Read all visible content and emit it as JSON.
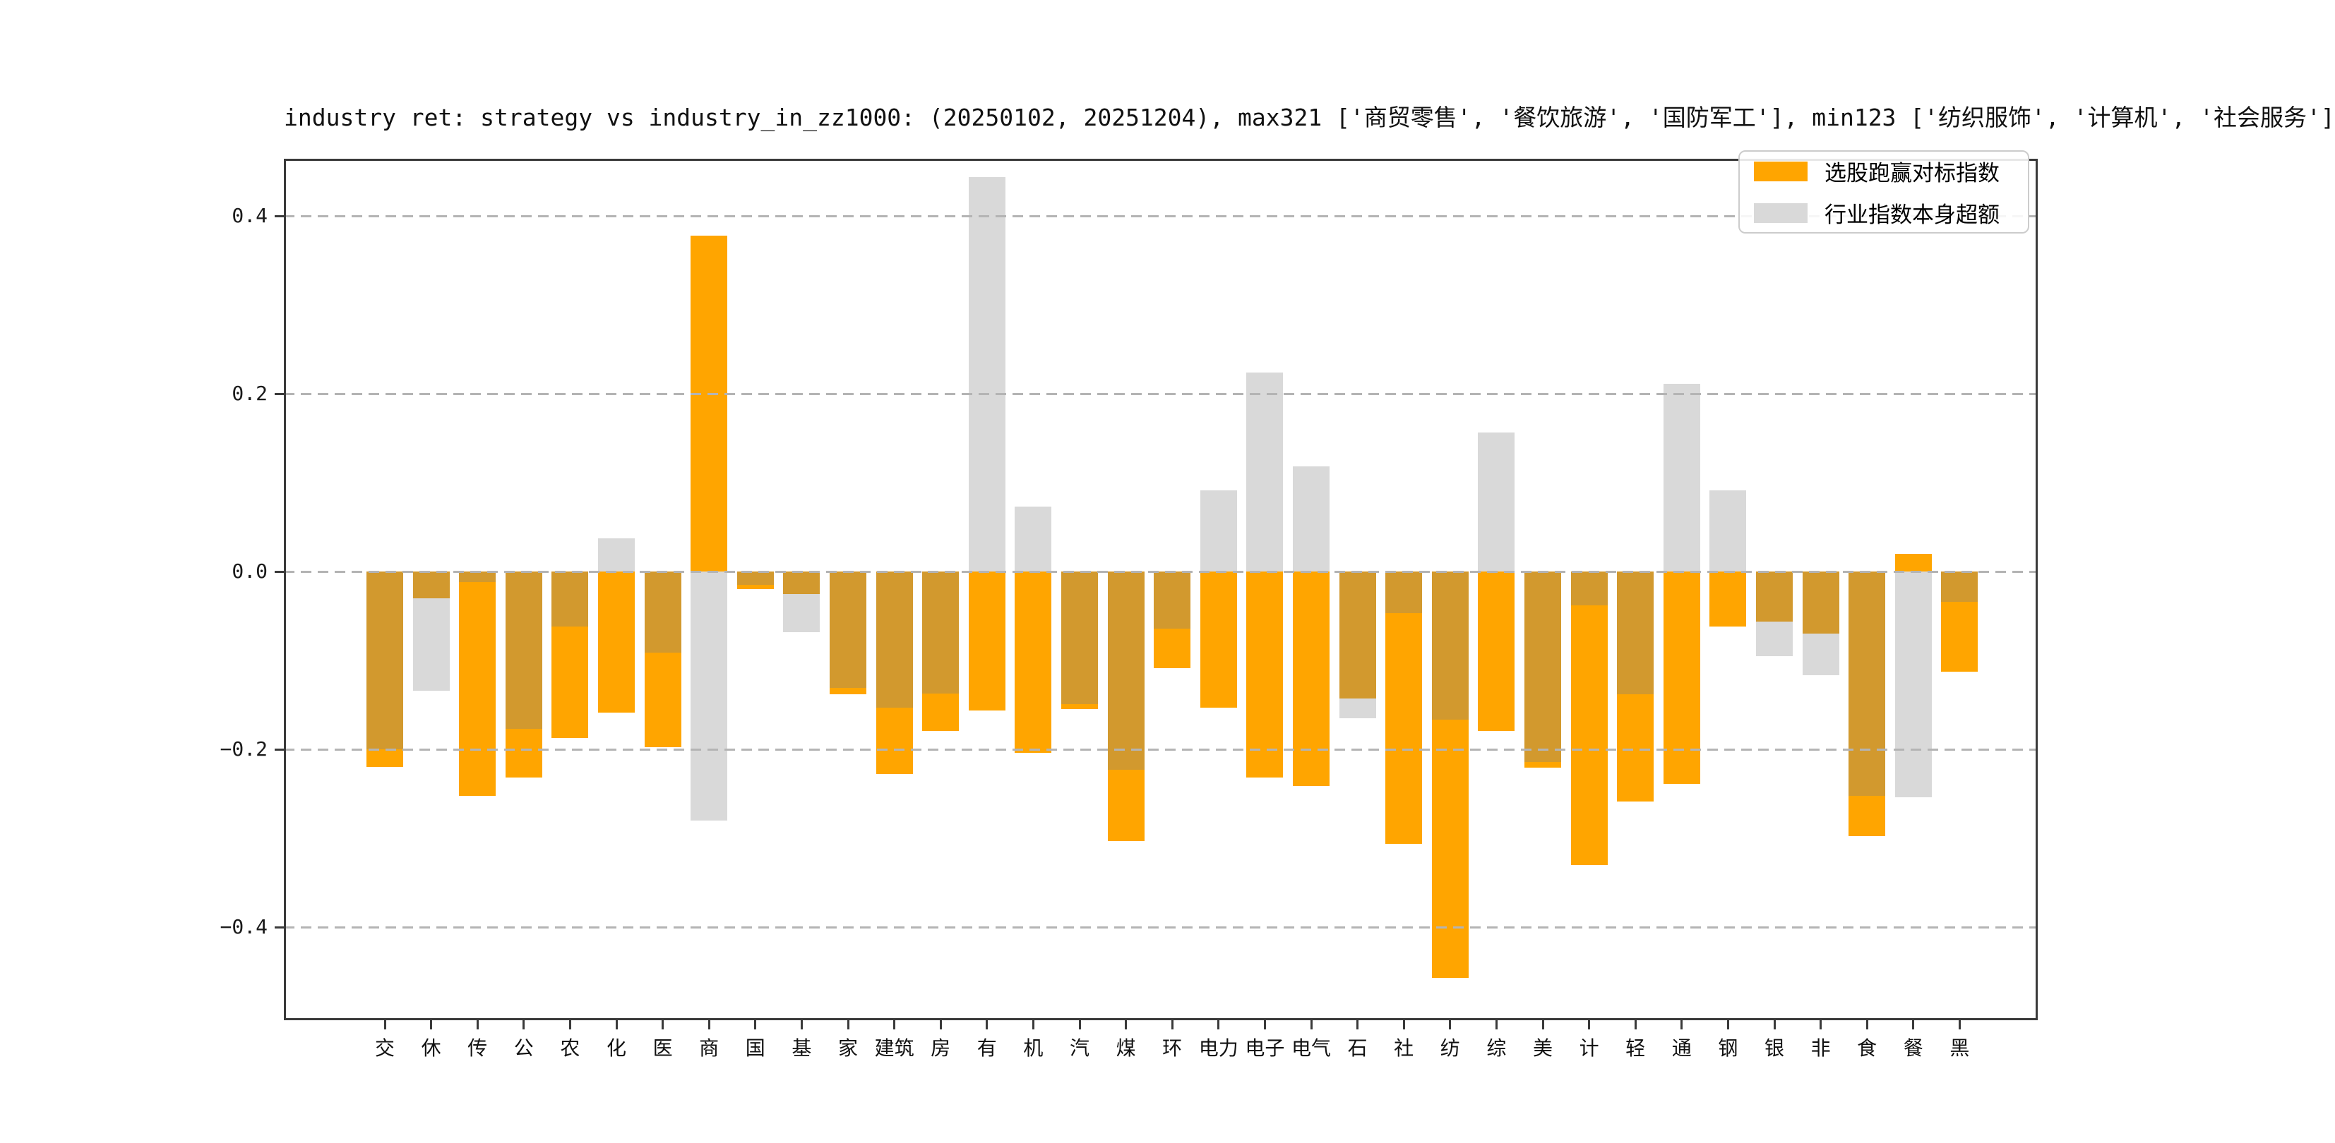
{
  "figure": {
    "title": "industry ret: strategy vs industry_in_zz1000: (20250102, 20251204), max321 ['商贸零售', '餐饮旅游', '国防军工'], min123 ['纺织服饰', '计算机', '社会服务']",
    "background": "#ffffff"
  },
  "legend": {
    "position": "upper right",
    "items": [
      {
        "label": "选股跑赢对标指数",
        "color": "#FFA500"
      },
      {
        "label": "行业指数本身超额",
        "color": "#D9D9D9"
      }
    ]
  },
  "axes": {
    "ytick_labels": [
      "0.4",
      "0.2",
      "0.0",
      "−0.2",
      "−0.4"
    ],
    "ytick_values": [
      0.4,
      0.2,
      0.0,
      -0.2,
      -0.4
    ],
    "ylim": [
      -0.505,
      0.464
    ],
    "grid": "horizontal dashed gray"
  },
  "chart_data": {
    "type": "bar",
    "title": "industry ret: strategy vs industry_in_zz1000: (20250102, 20251204), max321 ['商贸零售', '餐饮旅游', '国防军工'], min123 ['纺织服饰', '计算机', '社会服务']",
    "date_range": [
      "20250102",
      "20251204"
    ],
    "max3_industries": [
      "商贸零售",
      "餐饮旅游",
      "国防军工"
    ],
    "min3_industries": [
      "纺织服饰",
      "计算机",
      "社会服务"
    ],
    "categories": [
      "交",
      "休",
      "传",
      "公",
      "农",
      "化",
      "医",
      "商",
      "国",
      "基",
      "家",
      "建筑",
      "房",
      "有",
      "机",
      "汽",
      "煤",
      "环",
      "电力",
      "电子",
      "电气",
      "石",
      "社",
      "纺",
      "综",
      "美",
      "计",
      "轻",
      "通",
      "钢",
      "银",
      "非",
      "食",
      "餐",
      "黑"
    ],
    "series": [
      {
        "name": "选股跑赢对标指数",
        "color": "#FFA500",
        "values": [
          -0.22,
          -0.03,
          -0.252,
          -0.232,
          -0.187,
          -0.159,
          -0.198,
          0.378,
          -0.02,
          -0.025,
          -0.138,
          -0.228,
          -0.179,
          -0.156,
          -0.204,
          -0.155,
          -0.303,
          -0.109,
          -0.153,
          -0.232,
          -0.241,
          -0.143,
          -0.306,
          -0.457,
          -0.179,
          -0.221,
          -0.33,
          -0.259,
          -0.239,
          -0.062,
          -0.056,
          -0.07,
          -0.298,
          0.02,
          -0.113
        ]
      },
      {
        "name": "行业指数本身超额",
        "color": "#D9D9D9",
        "values": [
          -0.2,
          -0.134,
          -0.012,
          -0.177,
          -0.062,
          0.037,
          -0.091,
          -0.28,
          -0.015,
          -0.068,
          -0.131,
          -0.153,
          -0.137,
          0.444,
          0.073,
          -0.149,
          -0.223,
          -0.064,
          0.091,
          0.224,
          0.118,
          -0.165,
          -0.047,
          -0.167,
          0.156,
          -0.214,
          -0.038,
          -0.138,
          0.211,
          0.091,
          -0.095,
          -0.117,
          -0.252,
          -0.254,
          -0.034
        ]
      }
    ],
    "overlap_color": "#D2992E",
    "ylim": [
      -0.505,
      0.464
    ],
    "yticks": [
      0.4,
      0.2,
      0.0,
      -0.2,
      -0.4
    ],
    "xlabel": "",
    "ylabel": "",
    "grid": true,
    "legend_position": "upper right"
  }
}
